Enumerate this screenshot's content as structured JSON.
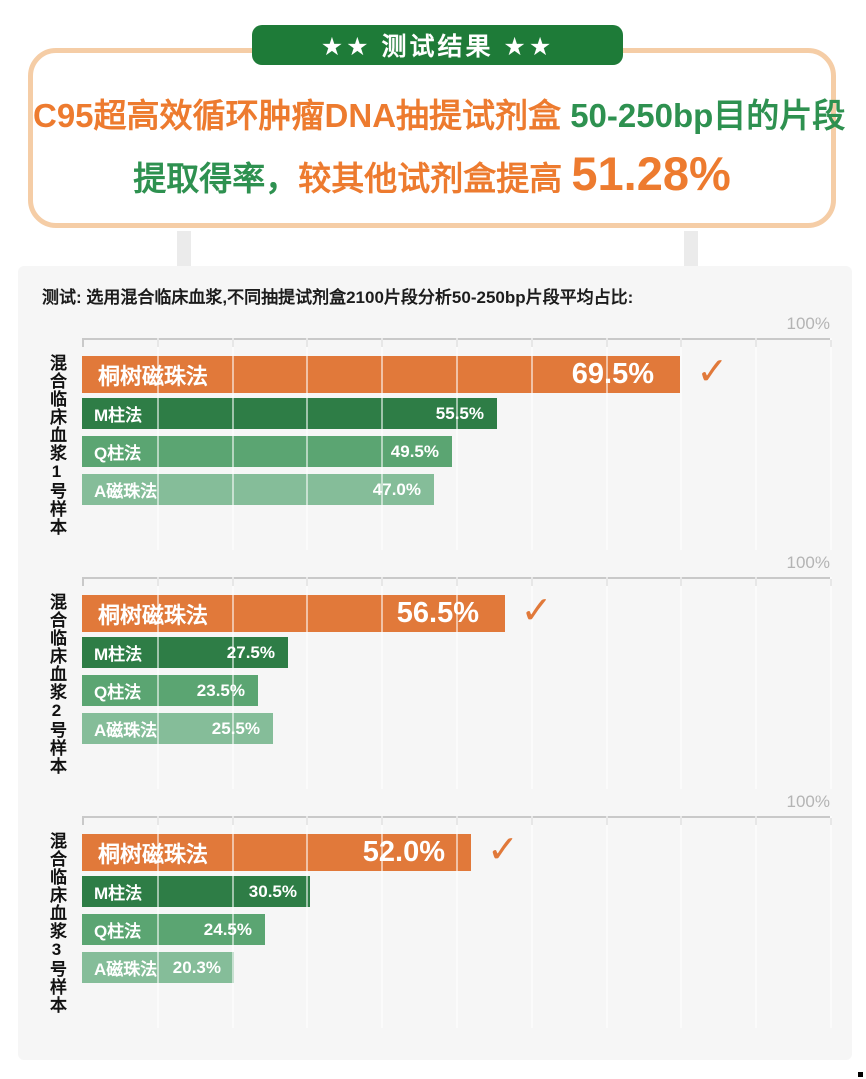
{
  "banner": {
    "label": "★★ 测试结果 ★★"
  },
  "headline": {
    "line1_orange": "C95超高效循环肿瘤DNA抽提试剂盒 ",
    "line1_green": "50-250bp目的片段",
    "line2_green": "提取得率，",
    "line2_orange": "较其他试剂盒提高 ",
    "line2_big": "51.28%"
  },
  "caption": "测试: 选用混合临床血浆,不同抽提试剂盒2100片段分析50-250bp片段平均占比:",
  "colors": {
    "banner_green": "#1e7b38",
    "headline_orange": "#ed7b2f",
    "headline_green": "#2e9150",
    "box_border_peach": "#f5cda6",
    "panel_bg": "#f6f6f6",
    "axis_gray": "#c9c9c9",
    "max_label_gray": "#b4b4b4",
    "bar_orange": "#e1793a",
    "bar_green_dark": "#2e7d46",
    "bar_green_mid": "#5ba572",
    "bar_green_light": "#85bd99"
  },
  "chart_data": {
    "type": "bar",
    "orientation": "horizontal",
    "xlim": [
      0,
      100
    ],
    "axis_max_label": "100%",
    "gridline_intervals": 10,
    "grid": true,
    "legend": "none",
    "check_glyph": "✓",
    "bar_colors": {
      "tongshu": "#e1793a",
      "m": "#2e7d46",
      "q": "#5ba572",
      "a": "#85bd99"
    },
    "groups": [
      {
        "sample": "混合临床血浆1号样本",
        "bars": [
          {
            "method": "桐树磁珠法",
            "value": 69.5,
            "label": "69.5%",
            "color_key": "tongshu",
            "highlight": true,
            "checked": true,
            "display_pct": 80
          },
          {
            "method": "M柱法",
            "value": 55.5,
            "label": "55.5%",
            "color_key": "m"
          },
          {
            "method": "Q柱法",
            "value": 49.5,
            "label": "49.5%",
            "color_key": "q"
          },
          {
            "method": "A磁珠法",
            "value": 47.0,
            "label": "47.0%",
            "color_key": "a"
          }
        ]
      },
      {
        "sample": "混合临床血浆2号样本",
        "bars": [
          {
            "method": "桐树磁珠法",
            "value": 56.5,
            "label": "56.5%",
            "color_key": "tongshu",
            "highlight": true,
            "checked": true
          },
          {
            "method": "M柱法",
            "value": 27.5,
            "label": "27.5%",
            "color_key": "m"
          },
          {
            "method": "Q柱法",
            "value": 23.5,
            "label": "23.5%",
            "color_key": "q"
          },
          {
            "method": "A磁珠法",
            "value": 25.5,
            "label": "25.5%",
            "color_key": "a"
          }
        ]
      },
      {
        "sample": "混合临床血浆3号样本",
        "bars": [
          {
            "method": "桐树磁珠法",
            "value": 52.0,
            "label": "52.0%",
            "color_key": "tongshu",
            "highlight": true,
            "checked": true
          },
          {
            "method": "M柱法",
            "value": 30.5,
            "label": "30.5%",
            "color_key": "m"
          },
          {
            "method": "Q柱法",
            "value": 24.5,
            "label": "24.5%",
            "color_key": "q"
          },
          {
            "method": "A磁珠法",
            "value": 20.3,
            "label": "20.3%",
            "color_key": "a"
          }
        ]
      }
    ]
  }
}
